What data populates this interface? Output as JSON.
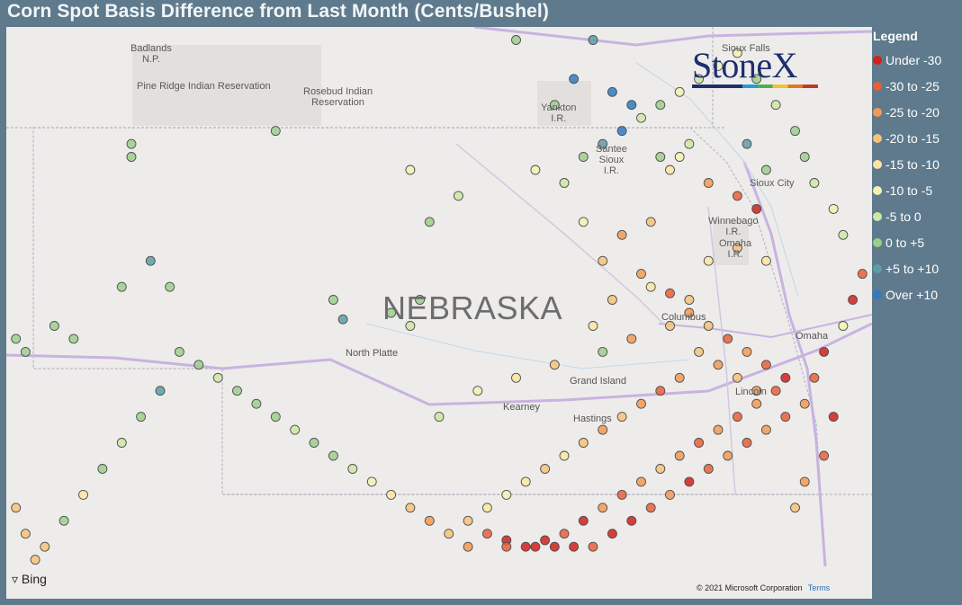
{
  "title": "Corn Spot Basis Difference from Last Month (Cents/Bushel)",
  "map": {
    "state_label": "NEBRASKA",
    "places": [
      {
        "name": "Badlands\nN.P."
      },
      {
        "name": "Pine Ridge Indian Reservation"
      },
      {
        "name": "Rosebud Indian\nReservation"
      },
      {
        "name": "Yankton\nI.R."
      },
      {
        "name": "Santee\nSioux\nI.R."
      },
      {
        "name": "Sioux City"
      },
      {
        "name": "Winnebago\nI.R."
      },
      {
        "name": "Omaha\nI.R."
      },
      {
        "name": "North Platte"
      },
      {
        "name": "Columbus"
      },
      {
        "name": "Grand Island"
      },
      {
        "name": "Kearney"
      },
      {
        "name": "Hastings"
      },
      {
        "name": "Lincoln"
      },
      {
        "name": "Omaha"
      },
      {
        "name": "Sioux Falls"
      }
    ],
    "brand_logo": "StoneX",
    "attribution": "Bing",
    "copyright": "© 2021 Microsoft Corporation",
    "terms_link": "Terms"
  },
  "legend": {
    "title": "Legend",
    "items": [
      {
        "label": "Under -30",
        "color": "#d0211c"
      },
      {
        "label": "-30 to -25",
        "color": "#e7603a"
      },
      {
        "label": "-25 to -20",
        "color": "#f19a55"
      },
      {
        "label": "-20 to -15",
        "color": "#f6c27a"
      },
      {
        "label": "-15 to -10",
        "color": "#fae6a1"
      },
      {
        "label": "-10 to -5",
        "color": "#f1f3b4"
      },
      {
        "label": "-5 to 0",
        "color": "#cde7a6"
      },
      {
        "label": "0 to +5",
        "color": "#9ccf8c"
      },
      {
        "label": "+5 to +10",
        "color": "#5a9fa6"
      },
      {
        "label": "Over +10",
        "color": "#2f7bbf"
      }
    ]
  },
  "points": [
    {
      "lon": -102.9,
      "lat": 43.1,
      "cat": 7
    },
    {
      "lon": -102.9,
      "lat": 43.0,
      "cat": 7
    },
    {
      "lon": -101.4,
      "lat": 43.2,
      "cat": 7
    },
    {
      "lon": -100.8,
      "lat": 41.9,
      "cat": 7
    },
    {
      "lon": -100.7,
      "lat": 41.75,
      "cat": 8
    },
    {
      "lon": -100.2,
      "lat": 41.8,
      "cat": 7
    },
    {
      "lon": -100.0,
      "lat": 41.7,
      "cat": 6
    },
    {
      "lon": -99.9,
      "lat": 41.9,
      "cat": 7
    },
    {
      "lon": -98.9,
      "lat": 43.9,
      "cat": 7
    },
    {
      "lon": -98.5,
      "lat": 43.4,
      "cat": 7
    },
    {
      "lon": -97.2,
      "lat": 43.0,
      "cat": 5
    },
    {
      "lon": -97.3,
      "lat": 42.9,
      "cat": 4
    },
    {
      "lon": -96.9,
      "lat": 42.8,
      "cat": 2
    },
    {
      "lon": -96.6,
      "lat": 42.7,
      "cat": 1
    },
    {
      "lon": -96.4,
      "lat": 42.6,
      "cat": 0
    },
    {
      "lon": -97.5,
      "lat": 42.5,
      "cat": 3
    },
    {
      "lon": -97.8,
      "lat": 42.4,
      "cat": 2
    },
    {
      "lon": -98.0,
      "lat": 42.2,
      "cat": 3
    },
    {
      "lon": -97.6,
      "lat": 42.1,
      "cat": 2
    },
    {
      "lon": -97.3,
      "lat": 41.95,
      "cat": 1
    },
    {
      "lon": -97.1,
      "lat": 41.8,
      "cat": 2
    },
    {
      "lon": -96.9,
      "lat": 41.7,
      "cat": 3
    },
    {
      "lon": -96.7,
      "lat": 41.6,
      "cat": 1
    },
    {
      "lon": -96.5,
      "lat": 41.5,
      "cat": 2
    },
    {
      "lon": -96.3,
      "lat": 41.4,
      "cat": 1
    },
    {
      "lon": -96.1,
      "lat": 41.3,
      "cat": 0
    },
    {
      "lon": -96.2,
      "lat": 41.2,
      "cat": 1
    },
    {
      "lon": -96.4,
      "lat": 41.1,
      "cat": 2
    },
    {
      "lon": -96.6,
      "lat": 41.0,
      "cat": 1
    },
    {
      "lon": -96.8,
      "lat": 40.9,
      "cat": 2
    },
    {
      "lon": -97.0,
      "lat": 40.8,
      "cat": 1
    },
    {
      "lon": -97.2,
      "lat": 40.7,
      "cat": 2
    },
    {
      "lon": -97.4,
      "lat": 40.6,
      "cat": 3
    },
    {
      "lon": -97.6,
      "lat": 40.5,
      "cat": 2
    },
    {
      "lon": -97.8,
      "lat": 40.4,
      "cat": 1
    },
    {
      "lon": -98.0,
      "lat": 40.3,
      "cat": 2
    },
    {
      "lon": -98.2,
      "lat": 40.2,
      "cat": 0
    },
    {
      "lon": -98.4,
      "lat": 40.1,
      "cat": 1
    },
    {
      "lon": -98.6,
      "lat": 40.05,
      "cat": 0
    },
    {
      "lon": -98.8,
      "lat": 40.0,
      "cat": 0
    },
    {
      "lon": -99.0,
      "lat": 40.05,
      "cat": 0
    },
    {
      "lon": -99.2,
      "lat": 40.1,
      "cat": 1
    },
    {
      "lon": -99.4,
      "lat": 40.0,
      "cat": 2
    },
    {
      "lon": -99.6,
      "lat": 40.1,
      "cat": 3
    },
    {
      "lon": -99.8,
      "lat": 40.2,
      "cat": 2
    },
    {
      "lon": -100.0,
      "lat": 40.3,
      "cat": 3
    },
    {
      "lon": -100.2,
      "lat": 40.4,
      "cat": 4
    },
    {
      "lon": -100.4,
      "lat": 40.5,
      "cat": 5
    },
    {
      "lon": -100.6,
      "lat": 40.6,
      "cat": 6
    },
    {
      "lon": -100.8,
      "lat": 40.7,
      "cat": 7
    },
    {
      "lon": -101.0,
      "lat": 40.8,
      "cat": 7
    },
    {
      "lon": -101.2,
      "lat": 40.9,
      "cat": 6
    },
    {
      "lon": -101.4,
      "lat": 41.0,
      "cat": 7
    },
    {
      "lon": -101.6,
      "lat": 41.1,
      "cat": 7
    },
    {
      "lon": -101.8,
      "lat": 41.2,
      "cat": 7
    },
    {
      "lon": -102.0,
      "lat": 41.3,
      "cat": 6
    },
    {
      "lon": -102.2,
      "lat": 41.4,
      "cat": 7
    },
    {
      "lon": -102.4,
      "lat": 41.5,
      "cat": 7
    },
    {
      "lon": -102.6,
      "lat": 41.2,
      "cat": 8
    },
    {
      "lon": -102.8,
      "lat": 41.0,
      "cat": 7
    },
    {
      "lon": -103.0,
      "lat": 40.8,
      "cat": 6
    },
    {
      "lon": -103.2,
      "lat": 40.6,
      "cat": 7
    },
    {
      "lon": -103.4,
      "lat": 40.4,
      "cat": 4
    },
    {
      "lon": -103.6,
      "lat": 40.2,
      "cat": 7
    },
    {
      "lon": -103.8,
      "lat": 40.0,
      "cat": 3
    },
    {
      "lon": -103.9,
      "lat": 39.9,
      "cat": 3
    },
    {
      "lon": -104.0,
      "lat": 40.1,
      "cat": 3
    },
    {
      "lon": -104.1,
      "lat": 40.3,
      "cat": 3
    },
    {
      "lon": -103.5,
      "lat": 41.6,
      "cat": 7
    },
    {
      "lon": -103.7,
      "lat": 41.7,
      "cat": 7
    },
    {
      "lon": -103.0,
      "lat": 42.0,
      "cat": 7
    },
    {
      "lon": -102.7,
      "lat": 42.2,
      "cat": 8
    },
    {
      "lon": -102.5,
      "lat": 42.0,
      "cat": 7
    },
    {
      "lon": -104.0,
      "lat": 41.5,
      "cat": 7
    },
    {
      "lon": -104.1,
      "lat": 41.6,
      "cat": 7
    },
    {
      "lon": -96.0,
      "lat": 40.3,
      "cat": 3
    },
    {
      "lon": -95.9,
      "lat": 40.5,
      "cat": 2
    },
    {
      "lon": -95.7,
      "lat": 40.7,
      "cat": 1
    },
    {
      "lon": -95.6,
      "lat": 41.0,
      "cat": 0
    },
    {
      "lon": -95.8,
      "lat": 41.3,
      "cat": 1
    },
    {
      "lon": -95.7,
      "lat": 41.5,
      "cat": 0
    },
    {
      "lon": -95.5,
      "lat": 41.7,
      "cat": 5
    },
    {
      "lon": -95.4,
      "lat": 41.9,
      "cat": 0
    },
    {
      "lon": -95.3,
      "lat": 42.1,
      "cat": 1
    },
    {
      "lon": -95.5,
      "lat": 42.4,
      "cat": 6
    },
    {
      "lon": -95.6,
      "lat": 42.6,
      "cat": 5
    },
    {
      "lon": -95.8,
      "lat": 42.8,
      "cat": 6
    },
    {
      "lon": -95.9,
      "lat": 43.0,
      "cat": 7
    },
    {
      "lon": -96.0,
      "lat": 43.2,
      "cat": 7
    },
    {
      "lon": -96.2,
      "lat": 43.4,
      "cat": 6
    },
    {
      "lon": -96.4,
      "lat": 43.6,
      "cat": 7
    },
    {
      "lon": -96.6,
      "lat": 43.8,
      "cat": 5
    },
    {
      "lon": -96.8,
      "lat": 43.7,
      "cat": 5
    },
    {
      "lon": -97.0,
      "lat": 43.6,
      "cat": 6
    },
    {
      "lon": -97.2,
      "lat": 43.5,
      "cat": 5
    },
    {
      "lon": -97.4,
      "lat": 43.4,
      "cat": 7
    },
    {
      "lon": -97.6,
      "lat": 43.3,
      "cat": 6
    },
    {
      "lon": -97.8,
      "lat": 43.2,
      "cat": 9
    },
    {
      "lon": -98.0,
      "lat": 43.1,
      "cat": 8
    },
    {
      "lon": -98.2,
      "lat": 43.0,
      "cat": 7
    },
    {
      "lon": -98.3,
      "lat": 43.6,
      "cat": 9
    },
    {
      "lon": -98.1,
      "lat": 43.9,
      "cat": 8
    },
    {
      "lon": -97.9,
      "lat": 43.5,
      "cat": 9
    },
    {
      "lon": -97.7,
      "lat": 43.4,
      "cat": 9
    },
    {
      "lon": -96.5,
      "lat": 43.1,
      "cat": 8
    },
    {
      "lon": -96.3,
      "lat": 42.9,
      "cat": 7
    },
    {
      "lon": -99.0,
      "lat": 40.0,
      "cat": 1
    },
    {
      "lon": -98.7,
      "lat": 40.0,
      "cat": 0
    },
    {
      "lon": -98.5,
      "lat": 40.0,
      "cat": 0
    },
    {
      "lon": -98.3,
      "lat": 40.0,
      "cat": 0
    },
    {
      "lon": -98.1,
      "lat": 40.0,
      "cat": 1
    },
    {
      "lon": -97.9,
      "lat": 40.1,
      "cat": 0
    },
    {
      "lon": -97.7,
      "lat": 40.2,
      "cat": 0
    },
    {
      "lon": -97.5,
      "lat": 40.3,
      "cat": 1
    },
    {
      "lon": -97.3,
      "lat": 40.4,
      "cat": 2
    },
    {
      "lon": -97.1,
      "lat": 40.5,
      "cat": 0
    },
    {
      "lon": -96.9,
      "lat": 40.6,
      "cat": 1
    },
    {
      "lon": -96.7,
      "lat": 40.7,
      "cat": 2
    },
    {
      "lon": -96.5,
      "lat": 40.8,
      "cat": 1
    },
    {
      "lon": -96.3,
      "lat": 40.9,
      "cat": 2
    },
    {
      "lon": -96.1,
      "lat": 41.0,
      "cat": 1
    },
    {
      "lon": -95.9,
      "lat": 41.1,
      "cat": 2
    },
    {
      "lon": -97.2,
      "lat": 41.3,
      "cat": 2
    },
    {
      "lon": -97.4,
      "lat": 41.2,
      "cat": 1
    },
    {
      "lon": -97.6,
      "lat": 41.1,
      "cat": 2
    },
    {
      "lon": -97.8,
      "lat": 41.0,
      "cat": 3
    },
    {
      "lon": -98.0,
      "lat": 40.9,
      "cat": 2
    },
    {
      "lon": -98.2,
      "lat": 40.8,
      "cat": 3
    },
    {
      "lon": -98.4,
      "lat": 40.7,
      "cat": 4
    },
    {
      "lon": -98.6,
      "lat": 40.6,
      "cat": 3
    },
    {
      "lon": -98.8,
      "lat": 40.5,
      "cat": 4
    },
    {
      "lon": -99.0,
      "lat": 40.4,
      "cat": 5
    },
    {
      "lon": -99.2,
      "lat": 40.3,
      "cat": 4
    },
    {
      "lon": -99.4,
      "lat": 40.2,
      "cat": 3
    },
    {
      "lon": -97.0,
      "lat": 41.5,
      "cat": 3
    },
    {
      "lon": -96.8,
      "lat": 41.4,
      "cat": 2
    },
    {
      "lon": -96.6,
      "lat": 41.3,
      "cat": 3
    },
    {
      "lon": -96.4,
      "lat": 41.2,
      "cat": 2
    },
    {
      "lon": -97.1,
      "lat": 41.9,
      "cat": 3
    },
    {
      "lon": -97.5,
      "lat": 42.0,
      "cat": 4
    },
    {
      "lon": -97.9,
      "lat": 41.9,
      "cat": 3
    },
    {
      "lon": -98.1,
      "lat": 41.7,
      "cat": 4
    },
    {
      "lon": -97.7,
      "lat": 41.6,
      "cat": 2
    },
    {
      "lon": -97.3,
      "lat": 41.7,
      "cat": 3
    },
    {
      "lon": -96.9,
      "lat": 42.2,
      "cat": 4
    },
    {
      "lon": -96.6,
      "lat": 42.3,
      "cat": 3
    },
    {
      "lon": -96.3,
      "lat": 42.2,
      "cat": 4
    },
    {
      "lon": -98.2,
      "lat": 42.5,
      "cat": 5
    },
    {
      "lon": -98.4,
      "lat": 42.8,
      "cat": 6
    },
    {
      "lon": -98.7,
      "lat": 42.9,
      "cat": 5
    },
    {
      "lon": -99.5,
      "lat": 42.7,
      "cat": 6
    },
    {
      "lon": -99.8,
      "lat": 42.5,
      "cat": 7
    },
    {
      "lon": -100.0,
      "lat": 42.9,
      "cat": 5
    },
    {
      "lon": -98.5,
      "lat": 41.4,
      "cat": 3
    },
    {
      "lon": -98.9,
      "lat": 41.3,
      "cat": 4
    },
    {
      "lon": -99.3,
      "lat": 41.2,
      "cat": 5
    },
    {
      "lon": -99.7,
      "lat": 41.0,
      "cat": 6
    },
    {
      "lon": -98.0,
      "lat": 41.5,
      "cat": 7
    },
    {
      "lon": -97.4,
      "lat": 43.0,
      "cat": 7
    },
    {
      "lon": -97.1,
      "lat": 43.1,
      "cat": 6
    }
  ]
}
